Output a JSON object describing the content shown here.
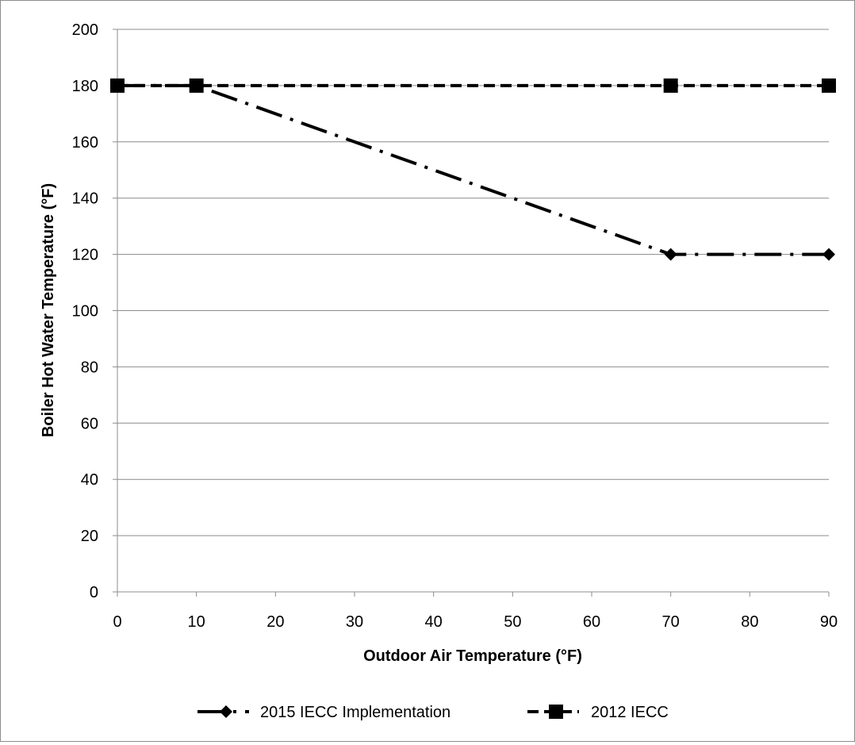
{
  "chart_data": {
    "type": "line",
    "title": "",
    "xlabel": "Outdoor Air Temperature (°F)",
    "ylabel": "Boiler Hot Water Temperature (°F)",
    "xlim": [
      0,
      90
    ],
    "ylim": [
      0,
      200
    ],
    "x_ticks": [
      "0",
      "10",
      "20",
      "30",
      "40",
      "50",
      "60",
      "70",
      "80",
      "90"
    ],
    "y_ticks": [
      "0",
      "20",
      "40",
      "60",
      "80",
      "100",
      "120",
      "140",
      "160",
      "180",
      "200"
    ],
    "grid": "horizontal",
    "legend_position": "bottom",
    "series": [
      {
        "name": "2015 IECC Implementation",
        "marker": "diamond",
        "line_style": "dash-dot",
        "color": "#000000",
        "x": [
          0,
          10,
          70,
          90
        ],
        "y": [
          180,
          180,
          120,
          120
        ]
      },
      {
        "name": "2012 IECC",
        "marker": "square",
        "line_style": "dashed",
        "color": "#000000",
        "x": [
          0,
          10,
          70,
          90
        ],
        "y": [
          180,
          180,
          180,
          180
        ]
      }
    ]
  }
}
